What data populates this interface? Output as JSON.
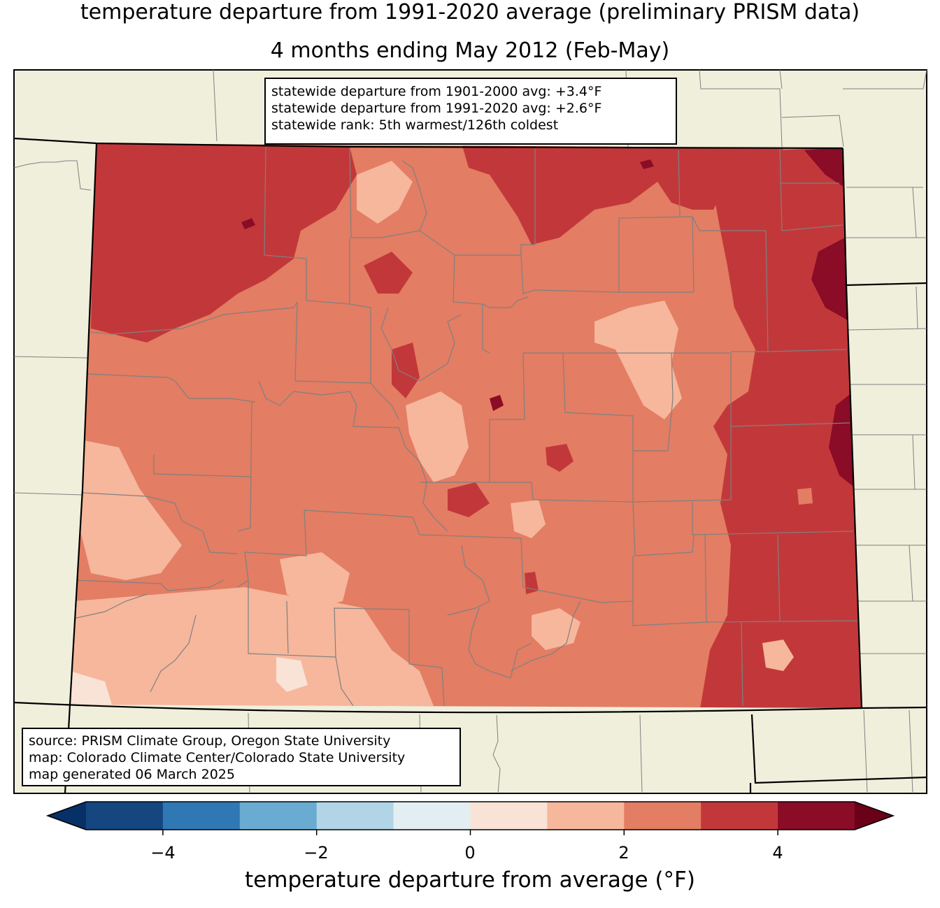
{
  "title_line1": "temperature departure from 1991-2020 average (preliminary PRISM data)",
  "title_line2": "4 months ending May 2012 (Feb-May)",
  "stats": {
    "line1": "statewide departure from 1901-2000 avg: +3.4°F",
    "line2": "statewide departure from 1991-2020 avg: +2.6°F",
    "line3": "statewide rank: 5th warmest/126th coldest"
  },
  "source": {
    "line1": "source: PRISM Climate Group, Oregon State University",
    "line2": "map: Colorado Climate Center/Colorado State University",
    "line3": "map generated 06 March 2025"
  },
  "colorbar": {
    "label": "temperature departure from average (°F)",
    "ticks": [
      "−4",
      "−2",
      "0",
      "2",
      "4"
    ],
    "bins": [
      -5,
      -4,
      -3,
      -2,
      -1,
      0,
      1,
      2,
      3,
      4,
      5
    ],
    "colors": [
      "#16467f",
      "#2f78b4",
      "#6aacd1",
      "#b1d5e7",
      "#e3eef3",
      "#f9e2d6",
      "#f6b79c",
      "#e37d63",
      "#c2383a",
      "#8a0c26"
    ],
    "under_color": "#073066",
    "over_color": "#6b0019"
  },
  "colors": {
    "land": "#efefdc",
    "state_border": "#000000",
    "county_border": "#808080"
  }
}
